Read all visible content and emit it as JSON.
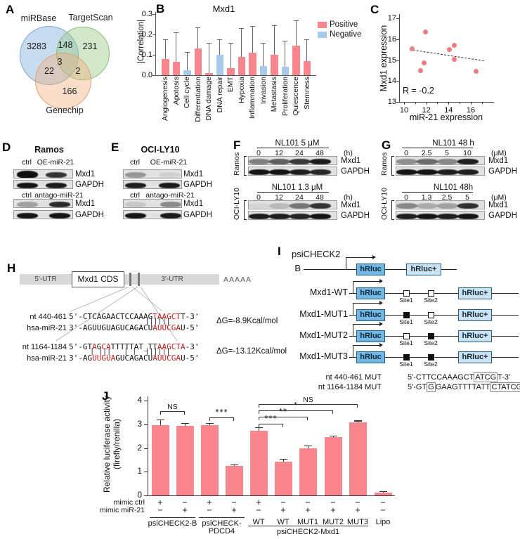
{
  "panel_labels": {
    "a": "A",
    "b": "B",
    "c": "C",
    "d": "D",
    "e": "E",
    "f": "F",
    "g": "G",
    "h": "H",
    "i": "I",
    "j": "J"
  },
  "colors": {
    "positive": "#f8868c",
    "negative": "#a7c9ec",
    "point": "#ef7a80",
    "venn_blue": "#a9c9e4",
    "venn_green": "#b7d7ab",
    "venn_orange": "#f6c49a",
    "hrluc_dark": "#74b7e3",
    "hrluc_light": "#cde1f1",
    "band": "#0b0b0b"
  },
  "venn": {
    "set_labels": [
      "miRBase",
      "TargetScan",
      "Genechip"
    ],
    "counts": {
      "mirbase_only": "3283",
      "mirbase_targetscan": "148",
      "targetscan_only": "231",
      "mirbase_genechip": "22",
      "all_three": "3",
      "targetscan_genechip": "2",
      "genechip_only": "166"
    }
  },
  "chart_data": [
    {
      "id": "hallmark_correlation",
      "type": "bar",
      "title": "Mxd1",
      "ylabel": "|Correlation|",
      "ylim": [
        0,
        0.3
      ],
      "yticks": [
        "0.0",
        "0.1",
        "0.2",
        "0.3"
      ],
      "legend_position": "right",
      "categories": [
        "Angiogenesis",
        "Apotosis",
        "Cell cycle",
        "Differentiation",
        "DNA damage",
        "DNA repair",
        "EMT",
        "Hypoxia",
        "Inflammation",
        "Invasion",
        "Metastasis",
        "Proliferation",
        "Quiescence",
        "Stemness"
      ],
      "values": [
        0.08,
        0.065,
        0.025,
        0.13,
        0.01,
        0.1,
        0.035,
        0.09,
        0.11,
        0.045,
        0.1,
        0.04,
        0.145,
        0.07
      ],
      "errors": [
        0.095,
        0.145,
        0.09,
        0.105,
        0.15,
        0.075,
        0.125,
        0.14,
        0.13,
        0.115,
        0.145,
        0.13,
        0.125,
        0.105
      ],
      "series_sign": [
        "positive",
        "positive",
        "negative",
        "positive",
        "positive",
        "negative",
        "positive",
        "positive",
        "positive",
        "negative",
        "positive",
        "negative",
        "positive",
        "positive"
      ],
      "legend": [
        {
          "label": "Positive",
          "color_key": "positive"
        },
        {
          "label": "Negative",
          "color_key": "negative"
        }
      ]
    },
    {
      "id": "expression_scatter",
      "type": "scatter",
      "xlabel": "miR-21 expression",
      "ylabel": "Mxd1 expression",
      "xlim": [
        10,
        17.5
      ],
      "ylim": [
        13,
        17.4
      ],
      "xticks": [
        10,
        12,
        14,
        16
      ],
      "minor_xticks": [
        11,
        13,
        15,
        17
      ],
      "yticks": [
        13,
        14,
        15,
        16,
        17
      ],
      "points": [
        [
          10.7,
          15.55
        ],
        [
          11.5,
          14.5
        ],
        [
          11.8,
          14.85
        ],
        [
          11.9,
          16.35
        ],
        [
          14.1,
          15.5
        ],
        [
          14.5,
          15.7
        ],
        [
          14.5,
          15.05
        ],
        [
          16.5,
          14.45
        ]
      ],
      "trendline": {
        "x1": 10.5,
        "y1": 15.52,
        "x2": 17.2,
        "y2": 14.98,
        "style": "dashed"
      },
      "annotation": "R = -0.2"
    },
    {
      "id": "luciferase",
      "type": "bar",
      "ylabel_line1": "Relative luciferase activity",
      "ylabel_line2": "(firefly/renilla)",
      "ylim": [
        0,
        4
      ],
      "yticks": [
        "0",
        "1",
        "2",
        "3",
        "4"
      ],
      "values": [
        2.95,
        2.93,
        2.95,
        1.25,
        2.72,
        1.43,
        2.0,
        2.45,
        3.08,
        0.13
      ],
      "errors": [
        0.25,
        0.12,
        0.1,
        0.05,
        0.15,
        0.12,
        0.1,
        0.08,
        0.08,
        0.04
      ],
      "bar_labels": [
        "",
        "",
        "",
        "",
        "WT",
        "WT",
        "MUT1",
        "MUT2",
        "MUT3",
        "Lipo"
      ],
      "mimic_ctrl_row": {
        "label": "mimic ctrl",
        "values": [
          "+",
          "−",
          "+",
          "−",
          "+",
          "−",
          "−",
          "−",
          "−",
          "−"
        ]
      },
      "mimic_mir21_row": {
        "label": "mimic miR-21",
        "values": [
          "−",
          "+",
          "−",
          "+",
          "−",
          "+",
          "+",
          "+",
          "+",
          "−"
        ]
      },
      "groups": [
        {
          "lines": [
            "psiCHECK2-B"
          ],
          "from": 0,
          "to": 1
        },
        {
          "lines": [
            "psiCHECK-",
            "PDCD4"
          ],
          "from": 2,
          "to": 3
        },
        {
          "lines": [
            "psiCHECK2-Mxd1"
          ],
          "from": 4,
          "to": 8
        }
      ],
      "significance": [
        {
          "from": 0,
          "to": 1,
          "label": "NS",
          "level": 3.55
        },
        {
          "from": 2,
          "to": 3,
          "label": "***",
          "level": 3.3
        },
        {
          "from": 4,
          "to": 5,
          "label": "***",
          "level": 3.02
        },
        {
          "from": 4,
          "to": 6,
          "label": "**",
          "level": 3.32
        },
        {
          "from": 4,
          "to": 7,
          "label": "*",
          "level": 3.58
        },
        {
          "from": 4,
          "to": 8,
          "label": "NS",
          "level": 3.85
        }
      ]
    }
  ],
  "blots": {
    "d": {
      "title": "Ramos",
      "row_names": [
        "Mxd1",
        "GAPDH"
      ],
      "groups": [
        {
          "lane_labels": [
            "ctrl",
            "OE-miR-21"
          ],
          "rows": [
            {
              "name": "Mxd1",
              "intensities": [
                0.97,
                0.8
              ],
              "heights": [
                11,
                8
              ]
            },
            {
              "name": "GAPDH",
              "intensities": [
                0.95,
                0.92
              ]
            }
          ]
        },
        {
          "lane_labels": [
            "ctrl",
            "antago-miR-21"
          ],
          "rows": [
            {
              "name": "Mxd1",
              "intensities": [
                0.3,
                0.85
              ]
            },
            {
              "name": "GAPDH",
              "intensities": [
                0.95,
                0.95
              ]
            }
          ]
        }
      ]
    },
    "e": {
      "title": "OCI-LY10",
      "row_names": [
        "Mxd1",
        "GAPDH"
      ],
      "groups": [
        {
          "lane_labels": [
            "ctrl",
            "OE-miR-21"
          ],
          "rows": [
            {
              "name": "Mxd1",
              "intensities": [
                0.35,
                0.08
              ]
            },
            {
              "name": "GAPDH",
              "intensities": [
                0.9,
                0.92
              ]
            }
          ]
        },
        {
          "lane_labels": [
            "ctrl",
            "antago-miR-21"
          ],
          "rows": [
            {
              "name": "Mxd1",
              "intensities": [
                0.12,
                0.4
              ]
            },
            {
              "name": "GAPDH",
              "intensities": [
                0.95,
                0.92
              ]
            }
          ]
        }
      ]
    },
    "f": {
      "blocks": [
        {
          "cell": "Ramos",
          "treatment": "NL101  5 μM",
          "doses": [
            "0",
            "12",
            "24",
            "48"
          ],
          "dose_unit": "(h)",
          "rows": [
            {
              "name": "Mxd1",
              "intensities": [
                0.45,
                0.6,
                0.78,
                0.92
              ]
            },
            {
              "name": "GAPDH",
              "intensities": [
                0.95,
                0.95,
                0.9,
                0.85
              ]
            }
          ]
        },
        {
          "cell": "OCI-LY10",
          "treatment": "NL101  1.3 μM",
          "doses": [
            "0",
            "12",
            "24",
            "48"
          ],
          "dose_unit": "(h)",
          "rows": [
            {
              "name": "Mxd1",
              "intensities": [
                0.06,
                0.18,
                0.5,
                0.8
              ]
            },
            {
              "name": "GAPDH",
              "intensities": [
                0.92,
                0.9,
                0.88,
                0.95
              ]
            }
          ]
        }
      ]
    },
    "g": {
      "blocks": [
        {
          "cell": "Ramos",
          "treatment": "NL101  48 h",
          "doses": [
            "0",
            "2.5",
            "5",
            "10"
          ],
          "dose_unit": "(μM)",
          "rows": [
            {
              "name": "Mxd1",
              "intensities": [
                0.38,
                0.55,
                0.42,
                0.9
              ]
            },
            {
              "name": "GAPDH",
              "intensities": [
                0.95,
                0.95,
                0.9,
                0.9
              ]
            }
          ]
        },
        {
          "cell": "OCI-LY10",
          "treatment": "NL101  48h",
          "doses": [
            "0",
            "1.3",
            "2.5",
            "5"
          ],
          "dose_unit": "(μM)",
          "rows": [
            {
              "name": "Mxd1",
              "intensities": [
                0.42,
                0.25,
                0.3,
                0.82
              ]
            },
            {
              "name": "GAPDH",
              "intensities": [
                0.9,
                0.95,
                0.9,
                0.95
              ]
            }
          ]
        }
      ]
    }
  },
  "mrna_diagram": {
    "regions": {
      "utr5": "5'-UTR",
      "cds": "Mxd1 CDS",
      "utr3": "3'-UTR",
      "polya": "AAAAA"
    },
    "duplexes": [
      {
        "site_label": "nt 440-461",
        "mir_label": "hsa-miR-21",
        "target_segments": [
          {
            "t": "5'-CTCAGAACTCCAAAG",
            "red": false
          },
          {
            "t": "TAAGCT",
            "red": true
          },
          {
            "t": "T-3'",
            "red": false
          }
        ],
        "pair_bars": "                  ||||||",
        "mir_segments": [
          {
            "t": "3'-AGUUGUAGUCAGACU",
            "red": false
          },
          {
            "t": "AUUCGA",
            "red": true
          },
          {
            "t": "U-5'",
            "red": false
          }
        ],
        "dg": "ΔG=-8.9Kcal/mol"
      },
      {
        "site_label": "nt 1164-1184",
        "mir_label": "hsa-miR-21",
        "target_segments": [
          {
            "t": "5'-GT",
            "red": false
          },
          {
            "t": "A",
            "red": true
          },
          {
            "t": "G",
            "red": false
          },
          {
            "t": "CA",
            "red": true
          },
          {
            "t": "TTTTTAT_TT",
            "red": false
          },
          {
            "t": "AAGCTA",
            "red": true
          },
          {
            "t": "-3'",
            "red": false
          }
        ],
        "pair_bars": "     | |||   | |  ||||||",
        "mir_segments": [
          {
            "t": "3'-AG",
            "red": false
          },
          {
            "t": "UUGUA",
            "red": true
          },
          {
            "t": "GUCAGACU",
            "red": false
          },
          {
            "t": "AUUCGA",
            "red": true
          },
          {
            "t": "U-5'",
            "red": false
          }
        ],
        "dg": "ΔG=-13.12Kcal/mol"
      }
    ]
  },
  "constructs": {
    "vector_name": "psiCHECK2",
    "box1": "hRluc",
    "box2": "hRluc+",
    "site1": "Site1",
    "site2": "Site2",
    "rows": [
      {
        "label": "B",
        "sites": null
      },
      {
        "label": "Mxd1-WT",
        "sites": [
          "open",
          "open"
        ]
      },
      {
        "label": "Mxd1-MUT1",
        "sites": [
          "filled",
          "open"
        ]
      },
      {
        "label": "Mxd1-MUT2",
        "sites": [
          "open",
          "filled"
        ]
      },
      {
        "label": "Mxd1-MUT3",
        "sites": [
          "filled",
          "filled"
        ]
      }
    ],
    "mut_sequences": [
      {
        "label": "nt 440-461 MUT",
        "segments": [
          {
            "t": "5'-CTTCCAAAGCT",
            "boxed": false
          },
          {
            "t": "ATCG",
            "boxed": true
          },
          {
            "t": "T-3'",
            "boxed": false
          }
        ]
      },
      {
        "label": "nt 1164-1184 MUT",
        "segments": [
          {
            "t": "5'-GT",
            "boxed": false
          },
          {
            "t": "G",
            "boxed": true
          },
          {
            "t": "GAAGTTTTATT",
            "boxed": false
          },
          {
            "t": "CTATCG",
            "boxed": true
          },
          {
            "t": "A-3'",
            "boxed": false
          }
        ]
      }
    ]
  }
}
